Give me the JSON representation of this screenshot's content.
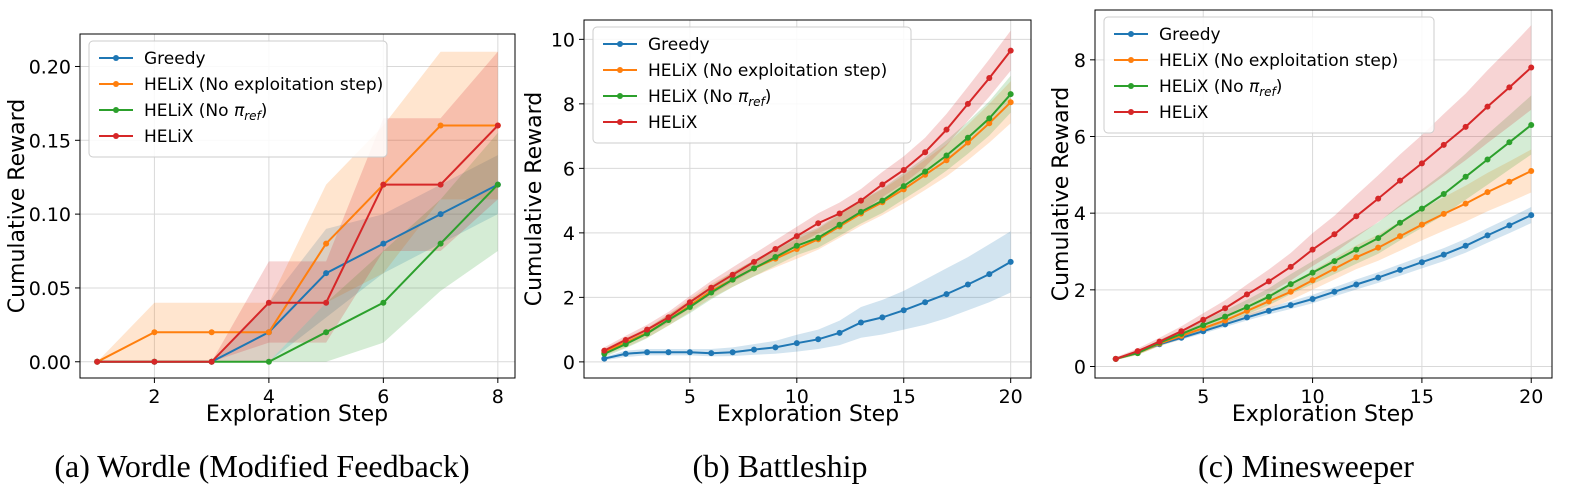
{
  "palette": {
    "greedy": "#1f77b4",
    "no_exploit": "#ff7f0e",
    "no_ref": "#2ca02c",
    "helix": "#d62728"
  },
  "chart_data": [
    {
      "type": "line",
      "caption": "(a) Wordle (Modified Feedback)",
      "xlabel": "Exploration Step",
      "ylabel": "Cumulative Reward",
      "xlim": [
        0.7,
        8.3
      ],
      "ylim": [
        -0.011,
        0.222
      ],
      "xticks": [
        2,
        4,
        6,
        8
      ],
      "xtick_labels": [
        "2",
        "4",
        "6",
        "8"
      ],
      "yticks": [
        0,
        0.05,
        0.1,
        0.15,
        0.2
      ],
      "ytick_labels": [
        "0.00",
        "0.05",
        "0.10",
        "0.15",
        "0.20"
      ],
      "grid": true,
      "legend_position": "top-left",
      "x": [
        1,
        2,
        3,
        4,
        5,
        6,
        7,
        8
      ],
      "series": [
        {
          "key": "greedy",
          "name": "Greedy",
          "values": [
            0.0,
            0.0,
            0.0,
            0.02,
            0.06,
            0.08,
            0.1,
            0.12
          ],
          "lower": [
            0.0,
            0.0,
            0.0,
            0.0,
            0.03,
            0.06,
            0.08,
            0.1
          ],
          "upper": [
            0.0,
            0.0,
            0.0,
            0.04,
            0.09,
            0.1,
            0.12,
            0.14
          ]
        },
        {
          "key": "no_exploit",
          "name": "HELiX (No exploitation step)",
          "values": [
            0.0,
            0.02,
            0.02,
            0.02,
            0.08,
            0.12,
            0.16,
            0.16
          ],
          "lower": [
            0.0,
            0.0,
            0.0,
            0.0,
            0.04,
            0.06,
            0.11,
            0.11
          ],
          "upper": [
            0.0,
            0.04,
            0.04,
            0.04,
            0.12,
            0.16,
            0.21,
            0.21
          ]
        },
        {
          "key": "no_ref",
          "name": "HELiX (No π_ref)",
          "values": [
            0.0,
            0.0,
            0.0,
            0.0,
            0.02,
            0.04,
            0.08,
            0.12
          ],
          "lower": [
            0.0,
            0.0,
            0.0,
            0.0,
            0.0,
            0.013,
            0.048,
            0.075
          ],
          "upper": [
            0.0,
            0.0,
            0.0,
            0.0,
            0.04,
            0.075,
            0.11,
            0.155
          ]
        },
        {
          "key": "helix",
          "name": "HELiX",
          "values": [
            0.0,
            0.0,
            0.0,
            0.04,
            0.04,
            0.12,
            0.12,
            0.16
          ],
          "lower": [
            0.0,
            0.0,
            0.0,
            0.013,
            0.013,
            0.075,
            0.075,
            0.11
          ],
          "upper": [
            0.0,
            0.0,
            0.0,
            0.068,
            0.068,
            0.165,
            0.165,
            0.21
          ]
        }
      ]
    },
    {
      "type": "line",
      "caption": "(b) Battleship",
      "xlabel": "Exploration Step",
      "ylabel": "Cumulative Reward",
      "xlim": [
        0.05,
        20.95
      ],
      "ylim": [
        -0.5,
        10.6
      ],
      "xticks": [
        5,
        10,
        15,
        20
      ],
      "xtick_labels": [
        "5",
        "10",
        "15",
        "20"
      ],
      "yticks": [
        0,
        2,
        4,
        6,
        8,
        10
      ],
      "ytick_labels": [
        "0",
        "2",
        "4",
        "6",
        "8",
        "10"
      ],
      "grid": true,
      "legend_position": "top-left",
      "x": [
        1,
        2,
        3,
        4,
        5,
        6,
        7,
        8,
        9,
        10,
        11,
        12,
        13,
        14,
        15,
        16,
        17,
        18,
        19,
        20
      ],
      "series": [
        {
          "key": "greedy",
          "name": "Greedy",
          "values": [
            0.1,
            0.25,
            0.3,
            0.3,
            0.3,
            0.27,
            0.3,
            0.38,
            0.45,
            0.58,
            0.7,
            0.9,
            1.22,
            1.38,
            1.6,
            1.85,
            2.1,
            2.4,
            2.72,
            3.1
          ],
          "lower": [
            0.05,
            0.15,
            0.2,
            0.2,
            0.2,
            0.17,
            0.18,
            0.22,
            0.25,
            0.32,
            0.4,
            0.52,
            0.75,
            0.85,
            1.0,
            1.15,
            1.35,
            1.6,
            1.85,
            2.15
          ],
          "upper": [
            0.15,
            0.35,
            0.4,
            0.4,
            0.4,
            0.4,
            0.45,
            0.55,
            0.65,
            0.84,
            1.0,
            1.28,
            1.7,
            1.92,
            2.2,
            2.55,
            2.9,
            3.25,
            3.65,
            4.05
          ]
        },
        {
          "key": "no_exploit",
          "name": "HELiX (No exploitation step)",
          "values": [
            0.3,
            0.6,
            0.9,
            1.3,
            1.75,
            2.2,
            2.55,
            2.9,
            3.2,
            3.5,
            3.8,
            4.2,
            4.6,
            4.95,
            5.35,
            5.8,
            6.25,
            6.8,
            7.4,
            8.05
          ],
          "lower": [
            0.2,
            0.45,
            0.75,
            1.12,
            1.55,
            1.98,
            2.32,
            2.65,
            2.93,
            3.2,
            3.48,
            3.85,
            4.22,
            4.55,
            4.92,
            5.33,
            5.75,
            6.25,
            6.8,
            7.4
          ],
          "upper": [
            0.4,
            0.75,
            1.05,
            1.48,
            1.95,
            2.42,
            2.78,
            3.15,
            3.47,
            3.8,
            4.12,
            4.55,
            4.98,
            5.35,
            5.78,
            6.27,
            6.75,
            7.35,
            8.0,
            8.7
          ]
        },
        {
          "key": "no_ref",
          "name": "HELiX (No π_ref)",
          "values": [
            0.25,
            0.55,
            0.88,
            1.3,
            1.7,
            2.15,
            2.55,
            2.9,
            3.25,
            3.6,
            3.85,
            4.25,
            4.65,
            5.0,
            5.45,
            5.9,
            6.4,
            6.95,
            7.55,
            8.3
          ],
          "lower": [
            0.15,
            0.42,
            0.73,
            1.13,
            1.51,
            1.94,
            2.32,
            2.65,
            2.98,
            3.31,
            3.54,
            3.91,
            4.29,
            4.62,
            5.04,
            5.46,
            5.93,
            6.45,
            7.02,
            7.73
          ],
          "upper": [
            0.35,
            0.68,
            1.03,
            1.47,
            1.89,
            2.36,
            2.78,
            3.15,
            3.52,
            3.89,
            4.16,
            4.59,
            5.01,
            5.38,
            5.86,
            6.34,
            6.87,
            7.45,
            8.08,
            8.87
          ]
        },
        {
          "key": "helix",
          "name": "HELiX",
          "values": [
            0.35,
            0.68,
            1.0,
            1.38,
            1.85,
            2.3,
            2.7,
            3.1,
            3.5,
            3.9,
            4.3,
            4.6,
            5.0,
            5.5,
            5.95,
            6.5,
            7.2,
            8.0,
            8.8,
            9.65
          ],
          "lower": [
            0.25,
            0.55,
            0.85,
            1.21,
            1.66,
            2.09,
            2.47,
            2.85,
            3.23,
            3.61,
            3.99,
            4.26,
            4.64,
            5.11,
            5.53,
            6.05,
            6.71,
            7.47,
            8.22,
            9.03
          ],
          "upper": [
            0.45,
            0.81,
            1.15,
            1.55,
            2.04,
            2.51,
            2.93,
            3.35,
            3.77,
            4.19,
            4.61,
            4.94,
            5.36,
            5.89,
            6.37,
            6.95,
            7.69,
            8.53,
            9.38,
            10.27
          ]
        }
      ]
    },
    {
      "type": "line",
      "caption": "(c) Minesweeper",
      "xlabel": "Exploration Step",
      "ylabel": "Cumulative Reward",
      "xlim": [
        0.05,
        20.95
      ],
      "ylim": [
        -0.3,
        9.3
      ],
      "xticks": [
        5,
        10,
        15,
        20
      ],
      "xtick_labels": [
        "5",
        "10",
        "15",
        "20"
      ],
      "yticks": [
        0,
        2,
        4,
        6,
        8
      ],
      "ytick_labels": [
        "0",
        "2",
        "4",
        "6",
        "8"
      ],
      "grid": true,
      "legend_position": "top-left",
      "x": [
        1,
        2,
        3,
        4,
        5,
        6,
        7,
        8,
        9,
        10,
        11,
        12,
        13,
        14,
        15,
        16,
        17,
        18,
        19,
        20
      ],
      "series": [
        {
          "key": "greedy",
          "name": "Greedy",
          "values": [
            0.2,
            0.38,
            0.58,
            0.75,
            0.92,
            1.1,
            1.28,
            1.45,
            1.6,
            1.76,
            1.95,
            2.14,
            2.32,
            2.52,
            2.72,
            2.92,
            3.15,
            3.42,
            3.68,
            3.95
          ],
          "lower": [
            0.18,
            0.35,
            0.54,
            0.7,
            0.86,
            1.03,
            1.2,
            1.36,
            1.5,
            1.65,
            1.83,
            2.01,
            2.18,
            2.37,
            2.56,
            2.75,
            2.97,
            3.23,
            3.48,
            3.74
          ],
          "upper": [
            0.22,
            0.41,
            0.62,
            0.8,
            0.98,
            1.17,
            1.36,
            1.54,
            1.7,
            1.87,
            2.07,
            2.27,
            2.46,
            2.67,
            2.88,
            3.09,
            3.33,
            3.61,
            3.88,
            4.16
          ]
        },
        {
          "key": "no_exploit",
          "name": "HELiX (No exploitation step)",
          "values": [
            0.2,
            0.35,
            0.6,
            0.8,
            1.0,
            1.2,
            1.45,
            1.7,
            1.95,
            2.25,
            2.55,
            2.85,
            3.1,
            3.4,
            3.7,
            3.98,
            4.25,
            4.55,
            4.82,
            5.1
          ],
          "lower": [
            0.17,
            0.3,
            0.53,
            0.71,
            0.89,
            1.07,
            1.29,
            1.51,
            1.73,
            2.0,
            2.27,
            2.54,
            2.76,
            3.02,
            3.29,
            3.54,
            3.78,
            4.05,
            4.29,
            4.54
          ],
          "upper": [
            0.23,
            0.4,
            0.67,
            0.89,
            1.11,
            1.33,
            1.61,
            1.89,
            2.17,
            2.5,
            2.83,
            3.16,
            3.44,
            3.78,
            4.11,
            4.42,
            4.72,
            5.05,
            5.35,
            5.66
          ]
        },
        {
          "key": "no_ref",
          "name": "HELiX (No π_ref)",
          "values": [
            0.2,
            0.35,
            0.62,
            0.85,
            1.08,
            1.3,
            1.55,
            1.82,
            2.15,
            2.45,
            2.75,
            3.05,
            3.35,
            3.75,
            4.12,
            4.5,
            4.95,
            5.4,
            5.85,
            6.3
          ],
          "lower": [
            0.17,
            0.3,
            0.54,
            0.75,
            0.95,
            1.14,
            1.36,
            1.6,
            1.89,
            2.15,
            2.41,
            2.68,
            2.94,
            3.29,
            3.62,
            3.95,
            4.35,
            4.74,
            5.14,
            5.53
          ],
          "upper": [
            0.23,
            0.4,
            0.7,
            0.95,
            1.21,
            1.46,
            1.74,
            2.04,
            2.41,
            2.75,
            3.09,
            3.42,
            3.76,
            4.21,
            4.62,
            5.05,
            5.55,
            6.06,
            6.56,
            7.07
          ]
        },
        {
          "key": "helix",
          "name": "HELiX",
          "values": [
            0.2,
            0.4,
            0.65,
            0.92,
            1.22,
            1.52,
            1.88,
            2.22,
            2.6,
            3.05,
            3.45,
            3.92,
            4.38,
            4.85,
            5.3,
            5.78,
            6.25,
            6.78,
            7.28,
            7.8
          ],
          "lower": [
            0.16,
            0.33,
            0.55,
            0.79,
            1.05,
            1.31,
            1.62,
            1.91,
            2.24,
            2.62,
            2.97,
            3.37,
            3.77,
            4.17,
            4.56,
            4.97,
            5.38,
            5.83,
            6.26,
            6.7
          ],
          "upper": [
            0.24,
            0.47,
            0.75,
            1.05,
            1.39,
            1.73,
            2.14,
            2.53,
            2.96,
            3.48,
            3.93,
            4.47,
            4.99,
            5.53,
            6.04,
            6.59,
            7.12,
            7.73,
            8.3,
            8.9
          ]
        }
      ]
    }
  ]
}
